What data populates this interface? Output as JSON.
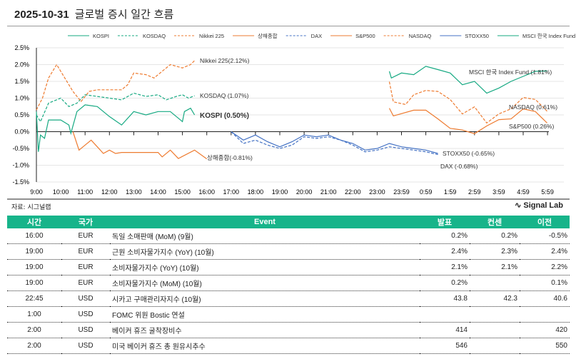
{
  "header": {
    "date": "2025-10-31",
    "title": "글로벌 증시 일간 흐름"
  },
  "chart_data": {
    "type": "line",
    "ylim": [
      -1.5,
      2.5
    ],
    "yticks": [
      "2.5%",
      "2.0%",
      "1.5%",
      "1.0%",
      "0.5%",
      "0.0%",
      "-0.5%",
      "-1.0%",
      "-1.5%"
    ],
    "ytick_values": [
      2.5,
      2.0,
      1.5,
      1.0,
      0.5,
      0.0,
      -0.5,
      -1.0,
      -1.5
    ],
    "xticks": [
      "9:00",
      "10:00",
      "11:00",
      "12:00",
      "13:00",
      "14:00",
      "15:00",
      "16:00",
      "17:00",
      "18:00",
      "19:00",
      "20:00",
      "21:00",
      "22:00",
      "23:00",
      "23:59",
      "0:59",
      "1:59",
      "2:59",
      "3:59",
      "4:59",
      "5:59"
    ],
    "grid": "horizontal",
    "legend": "top",
    "series": [
      {
        "name": "KOSPI",
        "label": "KOSPI (0.50%)",
        "color": "#16a982",
        "dash": false,
        "x": [
          "9:00",
          "9:05",
          "9:10",
          "9:20",
          "9:30",
          "10:00",
          "10:20",
          "10:25",
          "10:40",
          "11:00",
          "11:30",
          "12:00",
          "12:30",
          "13:00",
          "13:30",
          "14:00",
          "14:30",
          "15:00",
          "15:05",
          "15:20",
          "15:30"
        ],
        "y": [
          0.6,
          -0.6,
          -0.1,
          -0.2,
          0.35,
          0.35,
          0.2,
          -0.05,
          0.6,
          0.8,
          0.75,
          0.45,
          0.2,
          0.6,
          0.5,
          0.6,
          0.6,
          0.3,
          0.6,
          0.7,
          0.5
        ]
      },
      {
        "name": "KOSDAQ",
        "label": "KOSDAQ (1.07%)",
        "color": "#16a982",
        "dash": true,
        "x": [
          "9:00",
          "9:10",
          "9:30",
          "10:00",
          "10:20",
          "10:40",
          "11:00",
          "11:30",
          "12:00",
          "12:30",
          "13:00",
          "13:30",
          "14:00",
          "14:20",
          "14:45",
          "15:00",
          "15:15",
          "15:30"
        ],
        "y": [
          0.5,
          0.3,
          0.85,
          1.0,
          0.75,
          0.85,
          1.1,
          1.05,
          1.0,
          0.95,
          1.15,
          1.05,
          1.1,
          0.95,
          1.05,
          1.1,
          1.0,
          1.07
        ]
      },
      {
        "name": "Nikkei 225",
        "label": "Nikkei  225(2.12%)",
        "color": "#ee7b30",
        "dash": true,
        "x": [
          "9:00",
          "9:15",
          "9:30",
          "9:50",
          "10:10",
          "10:30",
          "10:50",
          "11:10",
          "11:30",
          "12:30",
          "12:45",
          "13:00",
          "13:30",
          "13:50",
          "14:10",
          "14:30",
          "15:00",
          "15:20",
          "15:30"
        ],
        "y": [
          0.65,
          1.0,
          1.6,
          2.0,
          1.6,
          1.2,
          0.9,
          1.2,
          1.25,
          1.25,
          1.4,
          1.75,
          1.7,
          1.6,
          1.8,
          2.0,
          1.9,
          2.0,
          2.12
        ]
      },
      {
        "name": "상해종합",
        "label": "상해종합(-0.81%)",
        "color": "#ee7b30",
        "dash": false,
        "x": [
          "10:30",
          "10:45",
          "11:00",
          "11:15",
          "11:30",
          "11:45",
          "12:00",
          "12:15",
          "12:30",
          "14:00",
          "14:10",
          "14:30",
          "14:50",
          "15:30",
          "16:00"
        ],
        "y": [
          0.0,
          -0.55,
          -0.4,
          -0.25,
          -0.45,
          -0.65,
          -0.55,
          -0.65,
          -0.62,
          -0.62,
          -0.75,
          -0.55,
          -0.8,
          -0.55,
          -0.81
        ]
      },
      {
        "name": "DAX",
        "label": "DAX (-0.68%)",
        "color": "#4472c4",
        "dash": true,
        "x": [
          "17:00",
          "17:30",
          "18:00",
          "18:30",
          "19:00",
          "19:30",
          "20:00",
          "20:30",
          "21:00",
          "21:30",
          "22:00",
          "22:30",
          "23:00",
          "23:30",
          "0:00",
          "0:30",
          "1:00",
          "1:30"
        ],
        "y": [
          0.0,
          -0.35,
          -0.25,
          -0.4,
          -0.5,
          -0.4,
          -0.15,
          -0.2,
          -0.15,
          -0.25,
          -0.4,
          -0.6,
          -0.55,
          -0.45,
          -0.5,
          -0.55,
          -0.6,
          -0.68
        ]
      },
      {
        "name": "S&P500",
        "label": "S&P500 (0.26%)",
        "color": "#ee7b30",
        "dash": false,
        "x": [
          "23:30",
          "23:40",
          "0:30",
          "1:00",
          "1:30",
          "2:00",
          "2:30",
          "3:00",
          "3:30",
          "4:00",
          "4:30",
          "5:00",
          "5:30",
          "5:59"
        ],
        "y": [
          0.7,
          0.47,
          0.64,
          0.64,
          0.38,
          0.1,
          0.05,
          -0.06,
          0.17,
          0.36,
          0.38,
          0.68,
          0.6,
          0.26
        ]
      },
      {
        "name": "NASDAQ",
        "label": "NASDAQ (0.61%)",
        "color": "#ee7b30",
        "dash": true,
        "x": [
          "23:30",
          "23:40",
          "0:10",
          "0:30",
          "1:00",
          "1:30",
          "2:00",
          "2:30",
          "3:00",
          "3:30",
          "4:00",
          "4:30",
          "5:00",
          "5:30",
          "5:59"
        ],
        "y": [
          1.49,
          0.89,
          0.81,
          1.1,
          1.23,
          1.2,
          0.96,
          0.53,
          0.74,
          0.26,
          0.53,
          0.68,
          1.02,
          0.96,
          0.61
        ]
      },
      {
        "name": "STOXX50",
        "label": "STOXX50 (-0.65%)",
        "color": "#4472c4",
        "dash": false,
        "x": [
          "17:00",
          "17:30",
          "18:00",
          "18:30",
          "19:00",
          "19:30",
          "20:00",
          "20:30",
          "21:00",
          "21:30",
          "22:00",
          "22:30",
          "23:00",
          "23:30",
          "0:00",
          "0:30",
          "1:00",
          "1:30"
        ],
        "y": [
          0.0,
          -0.25,
          -0.1,
          -0.3,
          -0.45,
          -0.3,
          -0.1,
          -0.15,
          -0.1,
          -0.25,
          -0.35,
          -0.55,
          -0.5,
          -0.35,
          -0.45,
          -0.5,
          -0.55,
          -0.65
        ]
      },
      {
        "name": "MSCI 한국 Index Fund",
        "label": "MSCI 한국 Index Fund (1.81%)",
        "color": "#16a982",
        "dash": false,
        "x": [
          "23:30",
          "23:35",
          "0:00",
          "0:30",
          "1:00",
          "1:30",
          "2:00",
          "2:30",
          "3:00",
          "3:30",
          "4:00",
          "4:30",
          "5:00",
          "5:30",
          "5:59"
        ],
        "y": [
          1.8,
          1.6,
          1.75,
          1.7,
          1.95,
          1.85,
          1.75,
          1.4,
          1.5,
          1.15,
          1.3,
          1.5,
          1.65,
          1.8,
          1.81
        ]
      }
    ]
  },
  "footer": {
    "source": "자료: 시그널랩",
    "brand": "Signal Lab",
    "brand_icon": "pulse-icon"
  },
  "table": {
    "accent": "#17b48a",
    "headers": [
      "시간",
      "국가",
      "Event",
      "발표",
      "컨센",
      "이전"
    ],
    "rows": [
      [
        "16:00",
        "EUR",
        "독일 소매판매 (MoM) (9월)",
        "0.2%",
        "0.2%",
        "-0.5%"
      ],
      [
        "19:00",
        "EUR",
        "근원 소비자물가지수 (YoY) (10월)",
        "2.4%",
        "2.3%",
        "2.4%"
      ],
      [
        "19:00",
        "EUR",
        "소비자물가지수 (YoY) (10월)",
        "2.1%",
        "2.1%",
        "2.2%"
      ],
      [
        "19:00",
        "EUR",
        "소비자물가지수 (MoM) (10월)",
        "0.2%",
        "",
        "0.1%"
      ],
      [
        "22:45",
        "USD",
        "시카고 구매관리자지수 (10월)",
        "43.8",
        "42.3",
        "40.6"
      ],
      [
        "1:00",
        "USD",
        "FOMC 위원 Bostic 연설",
        "",
        "",
        ""
      ],
      [
        "2:00",
        "USD",
        "베이커 휴즈 굴착장비수",
        "414",
        "",
        "420"
      ],
      [
        "2:00",
        "USD",
        "미국 베이커 휴즈 총 원유시추수",
        "546",
        "",
        "550"
      ]
    ]
  }
}
